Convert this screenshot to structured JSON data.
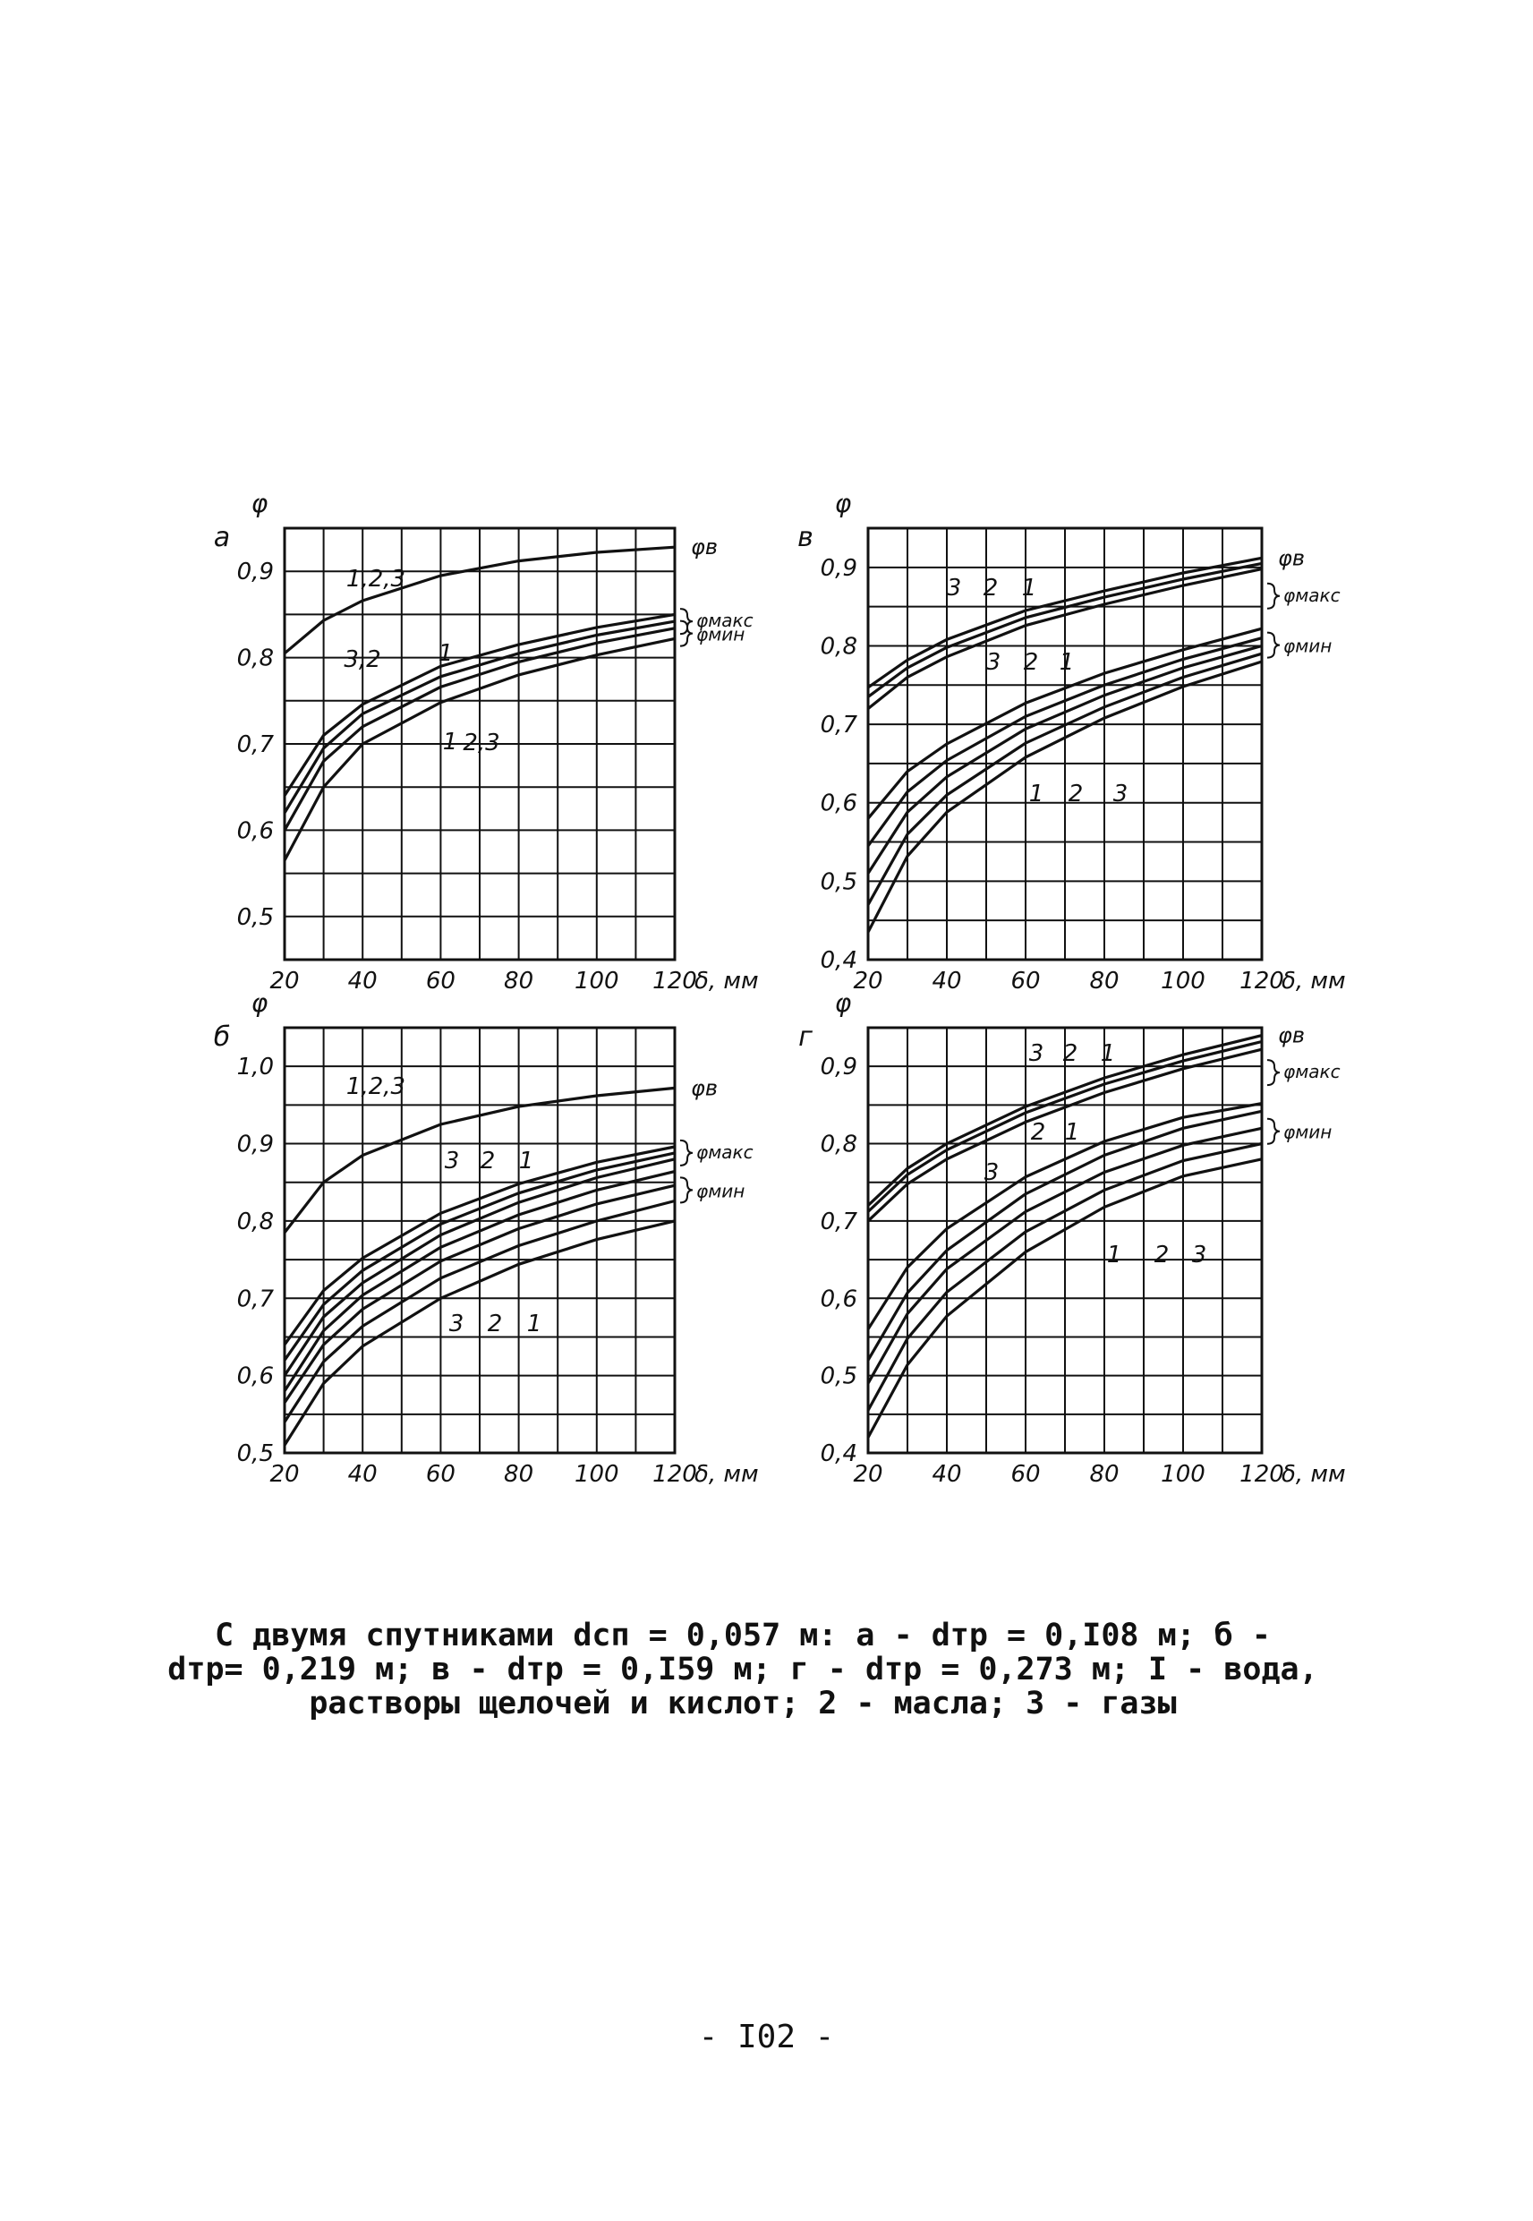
{
  "chart_data": [
    {
      "type": "line",
      "panel_label": "а",
      "ylabel": "φ",
      "xlabel": "δ, мм",
      "xlim": [
        20,
        120
      ],
      "ylim": [
        0.45,
        0.95
      ],
      "x_ticks": [
        "20",
        "40",
        "60",
        "80",
        "100",
        "120"
      ],
      "y_ticks": [
        "0,5",
        "0,6",
        "0,7",
        "0,8",
        "0,9"
      ],
      "group_labels": [
        "φв",
        "φмакс",
        "φмин"
      ],
      "annotations": [
        "1,2,3",
        "3,2",
        "1",
        "1",
        "2,3"
      ],
      "series": [
        {
          "x": [
            20,
            30,
            40,
            60,
            80,
            100,
            120
          ],
          "values": [
            0.805,
            0.843,
            0.866,
            0.895,
            0.912,
            0.922,
            0.928
          ]
        },
        {
          "x": [
            20,
            30,
            40,
            60,
            80,
            100,
            120
          ],
          "values": [
            0.64,
            0.71,
            0.746,
            0.79,
            0.815,
            0.835,
            0.85
          ]
        },
        {
          "x": [
            20,
            30,
            40,
            60,
            80,
            100,
            120
          ],
          "values": [
            0.62,
            0.695,
            0.735,
            0.778,
            0.805,
            0.826,
            0.842
          ]
        },
        {
          "x": [
            20,
            30,
            40,
            60,
            80,
            100,
            120
          ],
          "values": [
            0.6,
            0.68,
            0.72,
            0.766,
            0.795,
            0.817,
            0.834
          ]
        },
        {
          "x": [
            20,
            30,
            40,
            60,
            80,
            100,
            120
          ],
          "values": [
            0.565,
            0.65,
            0.7,
            0.748,
            0.78,
            0.803,
            0.822
          ]
        }
      ]
    },
    {
      "type": "line",
      "panel_label": "в",
      "ylabel": "φ",
      "xlabel": "δ, мм",
      "xlim": [
        20,
        120
      ],
      "ylim": [
        0.4,
        0.95
      ],
      "x_ticks": [
        "20",
        "40",
        "60",
        "80",
        "100",
        "120"
      ],
      "y_ticks": [
        "0,4",
        "0,5",
        "0,6",
        "0,7",
        "0,8",
        "0,9"
      ],
      "group_labels": [
        "φв",
        "φмакс",
        "φмин"
      ],
      "annotations": [
        "3",
        "2",
        "1",
        "3",
        "2",
        "1",
        "1",
        "2",
        "3"
      ],
      "series": [
        {
          "x": [
            20,
            30,
            40,
            60,
            80,
            100,
            120
          ],
          "values": [
            0.747,
            0.782,
            0.808,
            0.845,
            0.87,
            0.893,
            0.912
          ]
        },
        {
          "x": [
            20,
            30,
            40,
            60,
            80,
            100,
            120
          ],
          "values": [
            0.735,
            0.772,
            0.798,
            0.836,
            0.862,
            0.885,
            0.905
          ]
        },
        {
          "x": [
            20,
            30,
            40,
            60,
            80,
            100,
            120
          ],
          "values": [
            0.72,
            0.76,
            0.786,
            0.826,
            0.853,
            0.877,
            0.898
          ]
        },
        {
          "x": [
            20,
            30,
            40,
            60,
            80,
            100,
            120
          ],
          "values": [
            0.58,
            0.64,
            0.675,
            0.727,
            0.765,
            0.795,
            0.822
          ]
        },
        {
          "x": [
            20,
            30,
            40,
            60,
            80,
            100,
            120
          ],
          "values": [
            0.545,
            0.614,
            0.654,
            0.71,
            0.75,
            0.783,
            0.81
          ]
        },
        {
          "x": [
            20,
            30,
            40,
            60,
            80,
            100,
            120
          ],
          "values": [
            0.51,
            0.588,
            0.633,
            0.694,
            0.737,
            0.772,
            0.8
          ]
        },
        {
          "x": [
            20,
            30,
            40,
            60,
            80,
            100,
            120
          ],
          "values": [
            0.47,
            0.56,
            0.61,
            0.676,
            0.722,
            0.76,
            0.79
          ]
        },
        {
          "x": [
            20,
            30,
            40,
            60,
            80,
            100,
            120
          ],
          "values": [
            0.435,
            0.532,
            0.588,
            0.658,
            0.708,
            0.748,
            0.78
          ]
        }
      ]
    },
    {
      "type": "line",
      "panel_label": "б",
      "ylabel": "φ",
      "xlabel": "δ, мм",
      "xlim": [
        20,
        120
      ],
      "ylim": [
        0.5,
        1.05
      ],
      "x_ticks": [
        "20",
        "40",
        "60",
        "80",
        "100",
        "120"
      ],
      "y_ticks": [
        "0,5",
        "0,6",
        "0,7",
        "0,8",
        "0,9",
        "1,0"
      ],
      "group_labels": [
        "φв",
        "φмакс",
        "φмин"
      ],
      "annotations": [
        "1,2,3",
        "3",
        "2",
        "1",
        "3",
        "2",
        "1"
      ],
      "series": [
        {
          "x": [
            20,
            30,
            40,
            60,
            80,
            100,
            120
          ],
          "values": [
            0.785,
            0.85,
            0.885,
            0.925,
            0.948,
            0.962,
            0.972
          ]
        },
        {
          "x": [
            20,
            30,
            40,
            60,
            80,
            100,
            120
          ],
          "values": [
            0.64,
            0.71,
            0.752,
            0.81,
            0.848,
            0.876,
            0.896
          ]
        },
        {
          "x": [
            20,
            30,
            40,
            60,
            80,
            100,
            120
          ],
          "values": [
            0.62,
            0.692,
            0.736,
            0.796,
            0.836,
            0.866,
            0.888
          ]
        },
        {
          "x": [
            20,
            30,
            40,
            60,
            80,
            100,
            120
          ],
          "values": [
            0.6,
            0.676,
            0.72,
            0.782,
            0.824,
            0.856,
            0.88
          ]
        },
        {
          "x": [
            20,
            30,
            40,
            60,
            80,
            100,
            120
          ],
          "values": [
            0.58,
            0.658,
            0.704,
            0.766,
            0.808,
            0.84,
            0.864
          ]
        },
        {
          "x": [
            20,
            30,
            40,
            60,
            80,
            100,
            120
          ],
          "values": [
            0.565,
            0.64,
            0.686,
            0.748,
            0.79,
            0.822,
            0.846
          ]
        },
        {
          "x": [
            20,
            30,
            40,
            60,
            80,
            100,
            120
          ],
          "values": [
            0.54,
            0.618,
            0.664,
            0.726,
            0.768,
            0.8,
            0.826
          ]
        },
        {
          "x": [
            20,
            30,
            40,
            60,
            80,
            100,
            120
          ],
          "values": [
            0.51,
            0.59,
            0.638,
            0.7,
            0.744,
            0.776,
            0.8
          ]
        }
      ]
    },
    {
      "type": "line",
      "panel_label": "г",
      "ylabel": "φ",
      "xlabel": "δ, мм",
      "xlim": [
        20,
        120
      ],
      "ylim": [
        0.4,
        0.95
      ],
      "x_ticks": [
        "20",
        "40",
        "60",
        "80",
        "100",
        "120"
      ],
      "y_ticks": [
        "0,4",
        "0,5",
        "0,6",
        "0,7",
        "0,8",
        "0,9"
      ],
      "group_labels": [
        "φв",
        "φмакс",
        "φмин"
      ],
      "annotations": [
        "3",
        "2",
        "1",
        "3",
        "2",
        "1",
        "1",
        "2",
        "3"
      ],
      "series": [
        {
          "x": [
            20,
            30,
            40,
            60,
            80,
            100,
            120
          ],
          "values": [
            0.72,
            0.768,
            0.8,
            0.848,
            0.885,
            0.915,
            0.94
          ]
        },
        {
          "x": [
            20,
            30,
            40,
            60,
            80,
            100,
            120
          ],
          "values": [
            0.712,
            0.76,
            0.792,
            0.84,
            0.877,
            0.907,
            0.932
          ]
        },
        {
          "x": [
            20,
            30,
            40,
            60,
            80,
            100,
            120
          ],
          "values": [
            0.7,
            0.748,
            0.78,
            0.828,
            0.866,
            0.897,
            0.922
          ]
        },
        {
          "x": [
            20,
            30,
            40,
            60,
            80,
            100,
            120
          ],
          "values": [
            0.56,
            0.64,
            0.69,
            0.757,
            0.803,
            0.834,
            0.852
          ]
        },
        {
          "x": [
            20,
            30,
            40,
            60,
            80,
            100,
            120
          ],
          "values": [
            0.52,
            0.607,
            0.662,
            0.735,
            0.785,
            0.82,
            0.842
          ]
        },
        {
          "x": [
            20,
            30,
            40,
            60,
            80,
            100,
            120
          ],
          "values": [
            0.49,
            0.58,
            0.638,
            0.712,
            0.763,
            0.798,
            0.82
          ]
        },
        {
          "x": [
            20,
            30,
            40,
            60,
            80,
            100,
            120
          ],
          "values": [
            0.455,
            0.548,
            0.608,
            0.686,
            0.74,
            0.778,
            0.8
          ]
        },
        {
          "x": [
            20,
            30,
            40,
            60,
            80,
            100,
            120
          ],
          "values": [
            0.42,
            0.514,
            0.577,
            0.66,
            0.718,
            0.758,
            0.78
          ]
        }
      ]
    }
  ],
  "caption": {
    "line1": "С двумя спутниками dсп = 0,057 м: а - dтр = 0,I08 м; б -",
    "line2": "dтр= 0,219 м; в - dтр = 0,I59 м; г - dтр = 0,273 м; I - вода,",
    "line3": "растворы щелочей и кислот; 2 - масла; 3 - газы"
  },
  "page_number": "- I02 -"
}
